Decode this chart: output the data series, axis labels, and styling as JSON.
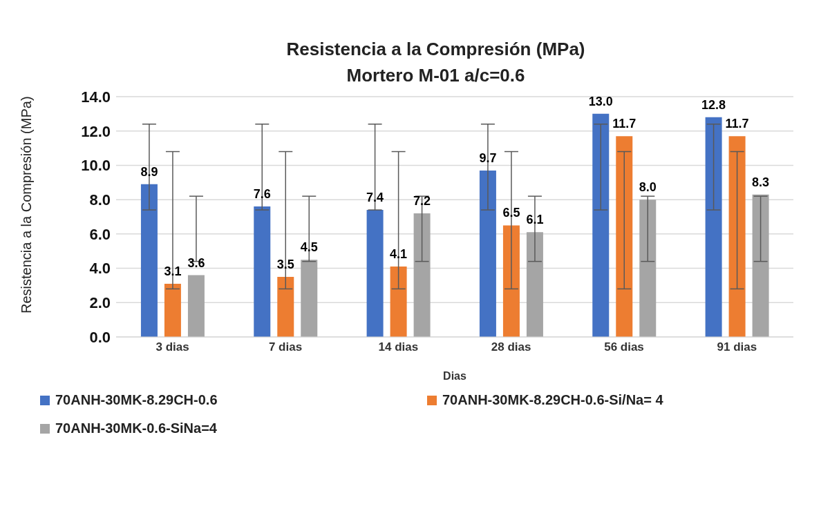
{
  "chart_data": {
    "type": "bar",
    "title": "Resistencia a la Compresión (MPa)\nMortero M-01  a/c=0.6",
    "xlabel": "Dias",
    "ylabel": "Resistencia a la Compresión (MPa)",
    "categories": [
      "3 dias",
      "7 dias",
      "14 dias",
      "28 dias",
      "56 dias",
      "91 dias"
    ],
    "series": [
      {
        "name": "70ANH-30MK-8.29CH-0.6",
        "color": "#4472c4",
        "values": [
          8.9,
          7.6,
          7.4,
          9.7,
          13.0,
          12.8
        ],
        "value_labels": [
          "8.9",
          "7.6",
          "7.4",
          "9.7",
          "13.0",
          "12.8"
        ],
        "errors": [
          [
            7.4,
            12.4
          ],
          [
            7.4,
            12.4
          ],
          [
            7.4,
            12.4
          ],
          [
            7.4,
            12.4
          ],
          [
            7.4,
            12.4
          ],
          [
            7.4,
            12.4
          ]
        ]
      },
      {
        "name": "70ANH-30MK-8.29CH-0.6-Si/Na= 4",
        "color": "#ed7d31",
        "values": [
          3.1,
          3.5,
          4.1,
          6.5,
          11.7,
          11.7
        ],
        "value_labels": [
          "3.1",
          "3.5",
          "4.1",
          "6.5",
          "11.7",
          "11.7"
        ],
        "errors": [
          [
            2.8,
            10.8
          ],
          [
            2.8,
            10.8
          ],
          [
            2.8,
            10.8
          ],
          [
            2.8,
            10.8
          ],
          [
            2.8,
            10.8
          ],
          [
            2.8,
            10.8
          ]
        ]
      },
      {
        "name": "70ANH-30MK-0.6-SiNa=4",
        "color": "#a5a5a5",
        "values": [
          3.6,
          4.5,
          7.2,
          6.1,
          8.0,
          8.3
        ],
        "value_labels": [
          "3.6",
          "4.5",
          "7.2",
          "6.1",
          "8.0",
          "8.3"
        ],
        "errors": [
          [
            4.4,
            8.2
          ],
          [
            4.4,
            8.2
          ],
          [
            4.4,
            8.2
          ],
          [
            4.4,
            8.2
          ],
          [
            4.4,
            8.2
          ],
          [
            4.4,
            8.2
          ]
        ]
      }
    ],
    "ylim": [
      0,
      14
    ],
    "yticks": [
      {
        "value": 0,
        "label": "0.0"
      },
      {
        "value": 2,
        "label": "2.0"
      },
      {
        "value": 4,
        "label": "4.0"
      },
      {
        "value": 6,
        "label": "6.0"
      },
      {
        "value": 8,
        "label": "8.0"
      },
      {
        "value": 10,
        "label": "10.0"
      },
      {
        "value": 12,
        "label": "12.0"
      },
      {
        "value": 14,
        "label": "14.0"
      }
    ],
    "grid": "y",
    "legend": "bottom"
  }
}
